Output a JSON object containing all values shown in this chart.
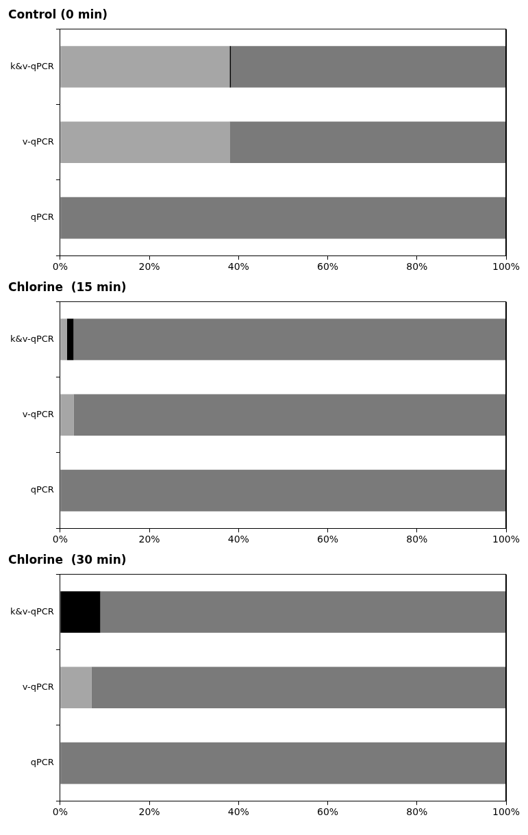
{
  "chart_data": [
    {
      "type": "bar",
      "orientation": "horizontal",
      "stacked": true,
      "title": "Control (0 min)",
      "categories": [
        "k&v-qPCR",
        "v-qPCR",
        "qPCR"
      ],
      "series": [
        {
          "color": "#a6a6a6",
          "values": [
            38,
            38,
            0
          ]
        },
        {
          "color": "#000000",
          "values": [
            0.3,
            0,
            0
          ]
        },
        {
          "color": "#7a7a7a",
          "values": [
            61.7,
            62,
            100
          ]
        }
      ],
      "xlim": [
        0,
        100
      ],
      "xticks": [
        {
          "value": 0,
          "label": "0%"
        },
        {
          "value": 20,
          "label": "20%"
        },
        {
          "value": 40,
          "label": "40%"
        },
        {
          "value": 60,
          "label": "60%"
        },
        {
          "value": 80,
          "label": "80%"
        },
        {
          "value": 100,
          "label": "100%"
        }
      ],
      "grid": false,
      "legend": false
    },
    {
      "type": "bar",
      "orientation": "horizontal",
      "stacked": true,
      "title": "Chlorine  (15 min)",
      "categories": [
        "k&v-qPCR",
        "v-qPCR",
        "qPCR"
      ],
      "series": [
        {
          "color": "#a6a6a6",
          "values": [
            1.5,
            3,
            0
          ]
        },
        {
          "color": "#000000",
          "values": [
            1.5,
            0,
            0
          ]
        },
        {
          "color": "#7a7a7a",
          "values": [
            97,
            97,
            100
          ]
        }
      ],
      "xlim": [
        0,
        100
      ],
      "xticks": [
        {
          "value": 0,
          "label": "0%"
        },
        {
          "value": 20,
          "label": "20%"
        },
        {
          "value": 40,
          "label": "40%"
        },
        {
          "value": 60,
          "label": "60%"
        },
        {
          "value": 80,
          "label": "80%"
        },
        {
          "value": 100,
          "label": "100%"
        }
      ],
      "grid": false,
      "legend": false
    },
    {
      "type": "bar",
      "orientation": "horizontal",
      "stacked": true,
      "title": "Chlorine  (30 min)",
      "categories": [
        "k&v-qPCR",
        "v-qPCR",
        "qPCR"
      ],
      "series": [
        {
          "color": "#a6a6a6",
          "values": [
            0,
            7,
            0
          ]
        },
        {
          "color": "#000000",
          "values": [
            9,
            0,
            0
          ]
        },
        {
          "color": "#7a7a7a",
          "values": [
            91,
            93,
            100
          ]
        }
      ],
      "xlim": [
        0,
        100
      ],
      "xticks": [
        {
          "value": 0,
          "label": "0%"
        },
        {
          "value": 20,
          "label": "20%"
        },
        {
          "value": 40,
          "label": "40%"
        },
        {
          "value": 60,
          "label": "60%"
        },
        {
          "value": 80,
          "label": "80%"
        },
        {
          "value": 100,
          "label": "100%"
        }
      ],
      "grid": false,
      "legend": false
    }
  ]
}
